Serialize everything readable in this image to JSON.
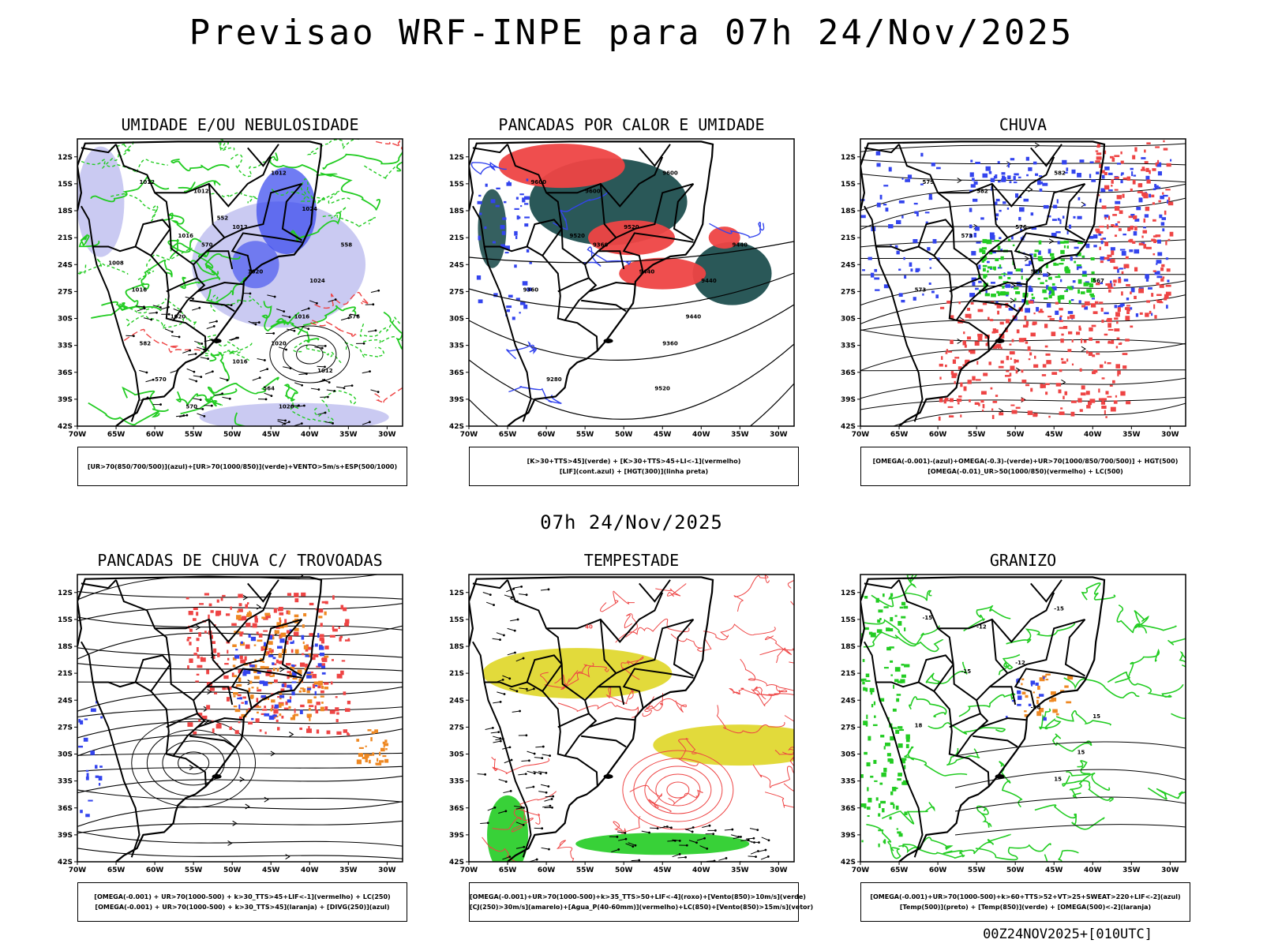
{
  "title": "Previsao WRF-INPE  para 07h 24/Nov/2025",
  "mid_date": "07h 24/Nov/2025",
  "footer_code": "00Z24NOV2025+[010UTC]",
  "axes": {
    "lat_labels": [
      "12S",
      "15S",
      "18S",
      "21S",
      "24S",
      "27S",
      "30S",
      "33S",
      "36S",
      "39S",
      "42S"
    ],
    "lon_labels": [
      "70W",
      "65W",
      "60W",
      "55W",
      "50W",
      "45W",
      "40W",
      "35W",
      "30W"
    ]
  },
  "colors": {
    "blue": "#3344ee",
    "lightblue": "#b8b8ee",
    "green": "#22cc22",
    "red": "#ee4444",
    "darkteal": "#1f4f4f",
    "orange": "#ee8822",
    "yellow": "#e0d830",
    "purple": "#7755cc"
  },
  "panels": [
    {
      "title": "UMIDADE E/OU NEBULOSIDADE",
      "legend": [
        "[UR>70(850/700/500)](azul)+[UR>70(1000/850)](verde)+VENTO>5m/s+ESP(500/1000)"
      ],
      "labels": [
        "1012",
        "1012",
        "1012",
        "1012",
        "1016",
        "1020",
        "1016",
        "1024",
        "1020",
        "1016",
        "570",
        "570",
        "564",
        "558",
        "552",
        "1020",
        "1024",
        "1008",
        "1012",
        "1016",
        "1020",
        "570",
        "576",
        "582"
      ]
    },
    {
      "title": "PANCADAS POR CALOR E UMIDADE",
      "legend": [
        "[K>30+TTS>45](verde) + [K>30+TTS>45+LI<-1](vermelho)",
        "[LIF](cont.azul) + [HGT(300)](linha preta)"
      ],
      "labels": [
        "9600",
        "9600",
        "9600",
        "9520",
        "9520",
        "9440",
        "9360",
        "9440",
        "9360",
        "9440",
        "9360",
        "9280",
        "9520",
        "9440"
      ]
    },
    {
      "title": "CHUVA",
      "legend": [
        "[OMEGA(-0.001)-(azul)+OMEGA(-0.3)-(verde)+UR>70(1000/850/700/500)] + HGT(500)",
        "[OMEGA(-0.01)_UR>50(1000/850)(vermelho) + LC(500)"
      ],
      "labels": [
        "582",
        "582",
        "579",
        "576",
        "573",
        "576",
        "573",
        "567"
      ]
    },
    {
      "title": "PANCADAS DE CHUVA C/ TROVOADAS",
      "legend": [
        "[OMEGA(-0.001) + UR>70(1000-500) + k>30_TTS>45+LIF<-1](vermelho) + LC(250)",
        "[OMEGA(-0.001) + UR>70(1000-500) + k>30_TTS>45](laranja) + [DIVG(250)](azul)"
      ],
      "labels": []
    },
    {
      "title": "TEMPESTADE",
      "legend": [
        "[OMEGA(-0.001)+UR>70(1000-500)+k>35_TTS>50+LIF<-4](roxo)+[Vento(850)>10m/s](verde)",
        "[CJ(250)>30m/s](amarelo)+[Agua_P(40-60mm)](vermelho)+LC(850)+[Vento(850)>15m/s](vetor)"
      ],
      "labels": [
        "40"
      ]
    },
    {
      "title": "GRANIZO",
      "legend": [
        "[OMEGA(-0.001)+UR>70(1000-500)+k>60+TTS>52+VT>25+SWEAT>220+LIF<-2](azul)",
        "[Temp(500)](preto) + [Temp(850)](verde) + [OMEGA(500)<-2](laranja)"
      ],
      "labels": [
        "-12",
        "-15",
        "-15",
        "-12",
        "-15",
        "-18",
        "18",
        "15",
        "15",
        "15"
      ]
    }
  ]
}
